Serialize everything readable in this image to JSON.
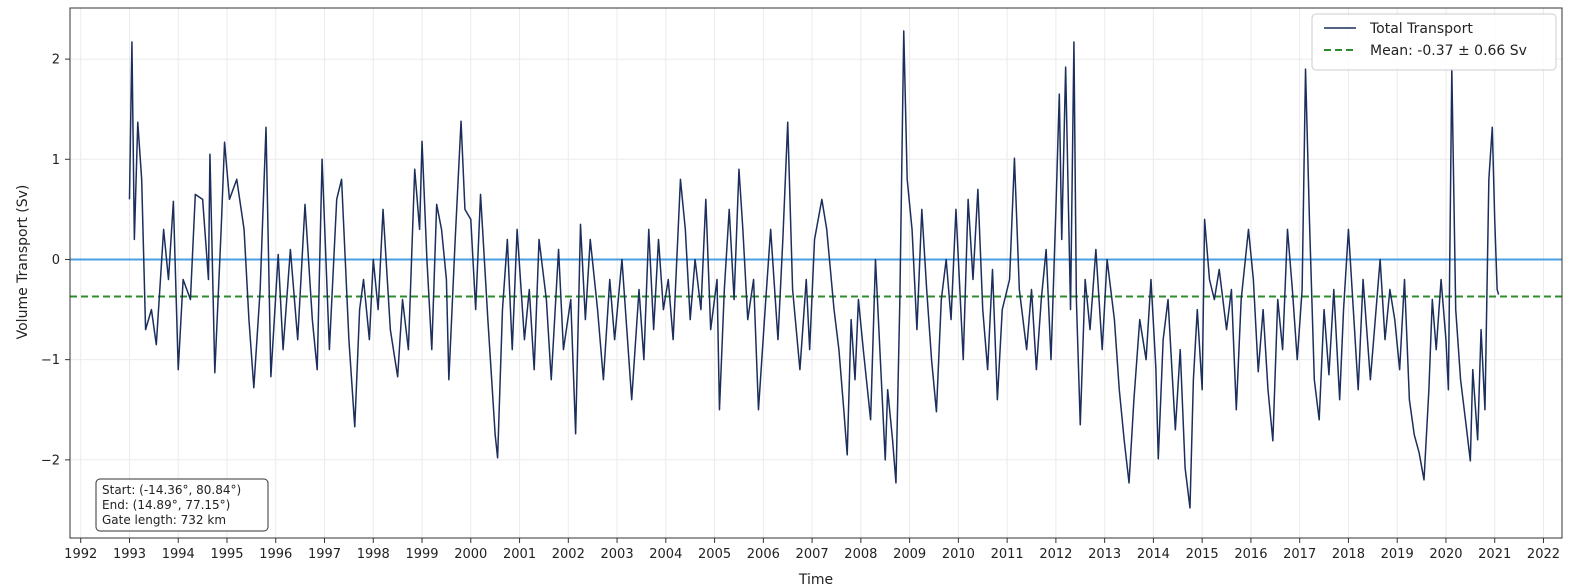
{
  "chart_data": {
    "type": "line",
    "title": "",
    "xlabel": "Time",
    "ylabel": "Volume Transport (Sv)",
    "xlim": [
      1991.78,
      2022.38
    ],
    "ylim": [
      -2.78,
      2.51
    ],
    "x_ticks": [
      "1992",
      "1993",
      "1994",
      "1995",
      "1996",
      "1997",
      "1998",
      "1999",
      "2000",
      "2001",
      "2002",
      "2003",
      "2004",
      "2005",
      "2006",
      "2007",
      "2008",
      "2009",
      "2010",
      "2011",
      "2012",
      "2013",
      "2014",
      "2015",
      "2016",
      "2017",
      "2018",
      "2019",
      "2020",
      "2021",
      "2022"
    ],
    "y_ticks": [
      -2,
      -1,
      0,
      1,
      2
    ],
    "y_tick_labels": [
      "−2",
      "−1",
      "0",
      "1",
      "2"
    ],
    "grid": true,
    "legend_placement": "top-right",
    "zero_line": {
      "y": 0,
      "color": "#4a9fe0"
    },
    "mean_line": {
      "y": -0.37,
      "color": "#2e8b2e",
      "style": "dashed"
    },
    "series": [
      {
        "name": "Total Transport",
        "color": "#1b2e5c",
        "points": [
          [
            1993.0,
            0.6
          ],
          [
            1993.05,
            2.17
          ],
          [
            1993.1,
            0.2
          ],
          [
            1993.17,
            1.37
          ],
          [
            1993.25,
            0.8
          ],
          [
            1993.33,
            -0.7
          ],
          [
            1993.45,
            -0.5
          ],
          [
            1993.55,
            -0.85
          ],
          [
            1993.7,
            0.3
          ],
          [
            1993.8,
            -0.2
          ],
          [
            1993.9,
            0.58
          ],
          [
            1994.0,
            -1.1
          ],
          [
            1994.1,
            -0.2
          ],
          [
            1994.25,
            -0.4
          ],
          [
            1994.35,
            0.65
          ],
          [
            1994.5,
            0.6
          ],
          [
            1994.62,
            -0.2
          ],
          [
            1994.65,
            1.05
          ],
          [
            1994.75,
            -1.13
          ],
          [
            1994.88,
            0.3
          ],
          [
            1994.95,
            1.17
          ],
          [
            1995.05,
            0.6
          ],
          [
            1995.2,
            0.8
          ],
          [
            1995.35,
            0.3
          ],
          [
            1995.45,
            -0.6
          ],
          [
            1995.55,
            -1.28
          ],
          [
            1995.68,
            -0.3
          ],
          [
            1995.8,
            1.32
          ],
          [
            1995.9,
            -1.17
          ],
          [
            1996.05,
            0.05
          ],
          [
            1996.15,
            -0.9
          ],
          [
            1996.3,
            0.1
          ],
          [
            1996.45,
            -0.8
          ],
          [
            1996.6,
            0.55
          ],
          [
            1996.75,
            -0.6
          ],
          [
            1996.85,
            -1.1
          ],
          [
            1996.95,
            1.0
          ],
          [
            1997.1,
            -0.9
          ],
          [
            1997.25,
            0.6
          ],
          [
            1997.35,
            0.8
          ],
          [
            1997.5,
            -0.8
          ],
          [
            1997.62,
            -1.67
          ],
          [
            1997.72,
            -0.5
          ],
          [
            1997.8,
            -0.2
          ],
          [
            1997.92,
            -0.8
          ],
          [
            1998.0,
            0.0
          ],
          [
            1998.1,
            -0.5
          ],
          [
            1998.2,
            0.5
          ],
          [
            1998.35,
            -0.7
          ],
          [
            1998.5,
            -1.17
          ],
          [
            1998.6,
            -0.4
          ],
          [
            1998.72,
            -0.9
          ],
          [
            1998.85,
            0.9
          ],
          [
            1998.95,
            0.3
          ],
          [
            1999.0,
            1.18
          ],
          [
            1999.1,
            0.0
          ],
          [
            1999.2,
            -0.9
          ],
          [
            1999.3,
            0.55
          ],
          [
            1999.4,
            0.3
          ],
          [
            1999.5,
            -0.2
          ],
          [
            1999.55,
            -1.2
          ],
          [
            1999.68,
            0.2
          ],
          [
            1999.8,
            1.38
          ],
          [
            1999.88,
            0.5
          ],
          [
            2000.0,
            0.4
          ],
          [
            2000.1,
            -0.5
          ],
          [
            2000.2,
            0.65
          ],
          [
            2000.35,
            -0.6
          ],
          [
            2000.5,
            -1.75
          ],
          [
            2000.55,
            -1.98
          ],
          [
            2000.65,
            -0.5
          ],
          [
            2000.75,
            0.2
          ],
          [
            2000.85,
            -0.9
          ],
          [
            2000.95,
            0.3
          ],
          [
            2001.1,
            -0.8
          ],
          [
            2001.2,
            -0.3
          ],
          [
            2001.3,
            -1.1
          ],
          [
            2001.4,
            0.2
          ],
          [
            2001.55,
            -0.4
          ],
          [
            2001.65,
            -1.2
          ],
          [
            2001.8,
            0.1
          ],
          [
            2001.9,
            -0.9
          ],
          [
            2002.05,
            -0.4
          ],
          [
            2002.15,
            -1.74
          ],
          [
            2002.25,
            0.35
          ],
          [
            2002.35,
            -0.6
          ],
          [
            2002.45,
            0.2
          ],
          [
            2002.6,
            -0.5
          ],
          [
            2002.72,
            -1.2
          ],
          [
            2002.85,
            -0.2
          ],
          [
            2002.95,
            -0.8
          ],
          [
            2003.1,
            0.0
          ],
          [
            2003.2,
            -0.7
          ],
          [
            2003.3,
            -1.4
          ],
          [
            2003.45,
            -0.3
          ],
          [
            2003.55,
            -1.0
          ],
          [
            2003.65,
            0.3
          ],
          [
            2003.75,
            -0.7
          ],
          [
            2003.85,
            0.2
          ],
          [
            2003.95,
            -0.5
          ],
          [
            2004.05,
            -0.2
          ],
          [
            2004.15,
            -0.8
          ],
          [
            2004.3,
            0.8
          ],
          [
            2004.4,
            0.3
          ],
          [
            2004.5,
            -0.6
          ],
          [
            2004.6,
            0.0
          ],
          [
            2004.72,
            -0.5
          ],
          [
            2004.82,
            0.6
          ],
          [
            2004.92,
            -0.7
          ],
          [
            2005.05,
            -0.2
          ],
          [
            2005.1,
            -1.5
          ],
          [
            2005.2,
            -0.3
          ],
          [
            2005.3,
            0.5
          ],
          [
            2005.4,
            -0.4
          ],
          [
            2005.5,
            0.9
          ],
          [
            2005.58,
            0.3
          ],
          [
            2005.68,
            -0.6
          ],
          [
            2005.8,
            -0.2
          ],
          [
            2005.9,
            -1.5
          ],
          [
            2006.05,
            -0.4
          ],
          [
            2006.15,
            0.3
          ],
          [
            2006.3,
            -0.8
          ],
          [
            2006.4,
            0.2
          ],
          [
            2006.5,
            1.37
          ],
          [
            2006.6,
            -0.3
          ],
          [
            2006.75,
            -1.1
          ],
          [
            2006.88,
            -0.2
          ],
          [
            2006.95,
            -0.9
          ],
          [
            2007.05,
            0.2
          ],
          [
            2007.2,
            0.6
          ],
          [
            2007.3,
            0.3
          ],
          [
            2007.45,
            -0.5
          ],
          [
            2007.55,
            -0.9
          ],
          [
            2007.65,
            -1.5
          ],
          [
            2007.72,
            -1.95
          ],
          [
            2007.8,
            -0.6
          ],
          [
            2007.88,
            -1.2
          ],
          [
            2007.95,
            -0.4
          ],
          [
            2008.05,
            -0.9
          ],
          [
            2008.2,
            -1.6
          ],
          [
            2008.3,
            0.0
          ],
          [
            2008.4,
            -1.0
          ],
          [
            2008.5,
            -2.0
          ],
          [
            2008.55,
            -1.3
          ],
          [
            2008.65,
            -1.8
          ],
          [
            2008.72,
            -2.23
          ],
          [
            2008.8,
            -0.4
          ],
          [
            2008.88,
            2.28
          ],
          [
            2008.95,
            0.8
          ],
          [
            2009.05,
            0.3
          ],
          [
            2009.15,
            -0.7
          ],
          [
            2009.25,
            0.5
          ],
          [
            2009.35,
            -0.3
          ],
          [
            2009.45,
            -1.0
          ],
          [
            2009.55,
            -1.52
          ],
          [
            2009.65,
            -0.4
          ],
          [
            2009.75,
            0.0
          ],
          [
            2009.85,
            -0.6
          ],
          [
            2009.95,
            0.5
          ],
          [
            2010.1,
            -1.0
          ],
          [
            2010.2,
            0.6
          ],
          [
            2010.3,
            -0.2
          ],
          [
            2010.4,
            0.7
          ],
          [
            2010.5,
            -0.5
          ],
          [
            2010.6,
            -1.1
          ],
          [
            2010.7,
            -0.1
          ],
          [
            2010.8,
            -1.4
          ],
          [
            2010.9,
            -0.5
          ],
          [
            2011.05,
            -0.2
          ],
          [
            2011.15,
            1.01
          ],
          [
            2011.25,
            -0.3
          ],
          [
            2011.4,
            -0.9
          ],
          [
            2011.5,
            -0.3
          ],
          [
            2011.6,
            -1.1
          ],
          [
            2011.7,
            -0.4
          ],
          [
            2011.8,
            0.1
          ],
          [
            2011.9,
            -1.0
          ],
          [
            2012.0,
            0.5
          ],
          [
            2012.07,
            1.65
          ],
          [
            2012.12,
            0.2
          ],
          [
            2012.2,
            1.92
          ],
          [
            2012.3,
            -0.5
          ],
          [
            2012.37,
            2.17
          ],
          [
            2012.42,
            -0.4
          ],
          [
            2012.5,
            -1.65
          ],
          [
            2012.6,
            -0.2
          ],
          [
            2012.7,
            -0.7
          ],
          [
            2012.82,
            0.1
          ],
          [
            2012.95,
            -0.9
          ],
          [
            2013.05,
            0.0
          ],
          [
            2013.2,
            -0.6
          ],
          [
            2013.3,
            -1.3
          ],
          [
            2013.4,
            -1.8
          ],
          [
            2013.5,
            -2.23
          ],
          [
            2013.6,
            -1.4
          ],
          [
            2013.72,
            -0.6
          ],
          [
            2013.85,
            -1.0
          ],
          [
            2013.95,
            -0.2
          ],
          [
            2014.05,
            -1.08
          ],
          [
            2014.1,
            -1.99
          ],
          [
            2014.2,
            -0.8
          ],
          [
            2014.3,
            -0.4
          ],
          [
            2014.38,
            -1.1
          ],
          [
            2014.45,
            -1.7
          ],
          [
            2014.55,
            -0.9
          ],
          [
            2014.65,
            -2.08
          ],
          [
            2014.75,
            -2.48
          ],
          [
            2014.82,
            -1.2
          ],
          [
            2014.9,
            -0.5
          ],
          [
            2015.0,
            -1.3
          ],
          [
            2015.05,
            0.4
          ],
          [
            2015.15,
            -0.2
          ],
          [
            2015.25,
            -0.4
          ],
          [
            2015.35,
            -0.1
          ],
          [
            2015.5,
            -0.7
          ],
          [
            2015.6,
            -0.3
          ],
          [
            2015.7,
            -1.5
          ],
          [
            2015.8,
            -0.4
          ],
          [
            2015.95,
            0.3
          ],
          [
            2016.05,
            -0.2
          ],
          [
            2016.15,
            -1.12
          ],
          [
            2016.25,
            -0.5
          ],
          [
            2016.35,
            -1.3
          ],
          [
            2016.45,
            -1.81
          ],
          [
            2016.55,
            -0.4
          ],
          [
            2016.65,
            -0.9
          ],
          [
            2016.75,
            0.3
          ],
          [
            2016.85,
            -0.3
          ],
          [
            2016.95,
            -1.0
          ],
          [
            2017.05,
            -0.3
          ],
          [
            2017.12,
            1.9
          ],
          [
            2017.2,
            0.4
          ],
          [
            2017.3,
            -1.2
          ],
          [
            2017.4,
            -1.6
          ],
          [
            2017.5,
            -0.5
          ],
          [
            2017.6,
            -1.15
          ],
          [
            2017.7,
            -0.3
          ],
          [
            2017.82,
            -1.4
          ],
          [
            2017.9,
            -0.5
          ],
          [
            2018.0,
            0.3
          ],
          [
            2018.1,
            -0.5
          ],
          [
            2018.2,
            -1.3
          ],
          [
            2018.3,
            -0.2
          ],
          [
            2018.45,
            -1.2
          ],
          [
            2018.55,
            -0.6
          ],
          [
            2018.65,
            0.0
          ],
          [
            2018.75,
            -0.8
          ],
          [
            2018.85,
            -0.3
          ],
          [
            2018.95,
            -0.6
          ],
          [
            2019.05,
            -1.1
          ],
          [
            2019.15,
            -0.2
          ],
          [
            2019.25,
            -1.4
          ],
          [
            2019.35,
            -1.75
          ],
          [
            2019.45,
            -1.93
          ],
          [
            2019.55,
            -2.2
          ],
          [
            2019.65,
            -1.3
          ],
          [
            2019.72,
            -0.4
          ],
          [
            2019.8,
            -0.9
          ],
          [
            2019.9,
            -0.2
          ],
          [
            2020.0,
            -0.8
          ],
          [
            2020.05,
            -1.3
          ],
          [
            2020.12,
            1.9
          ],
          [
            2020.2,
            -0.5
          ],
          [
            2020.3,
            -1.2
          ],
          [
            2020.4,
            -1.6
          ],
          [
            2020.5,
            -2.01
          ],
          [
            2020.55,
            -1.1
          ],
          [
            2020.65,
            -1.8
          ],
          [
            2020.72,
            -0.7
          ],
          [
            2020.8,
            -1.5
          ],
          [
            2020.88,
            0.8
          ],
          [
            2020.95,
            1.32
          ],
          [
            2021.0,
            0.4
          ],
          [
            2021.05,
            -0.3
          ],
          [
            2021.08,
            -0.35
          ]
        ]
      },
      {
        "name": "Mean: -0.37 ± 0.66 Sv",
        "color": "#2e8b2e",
        "style": "dashed"
      }
    ],
    "annotation": {
      "lines": [
        "Start: (-14.36°, 80.84°)",
        "End: (14.89°, 77.15°)",
        "Gate length: 732 km"
      ],
      "placement": "bottom-left"
    }
  }
}
